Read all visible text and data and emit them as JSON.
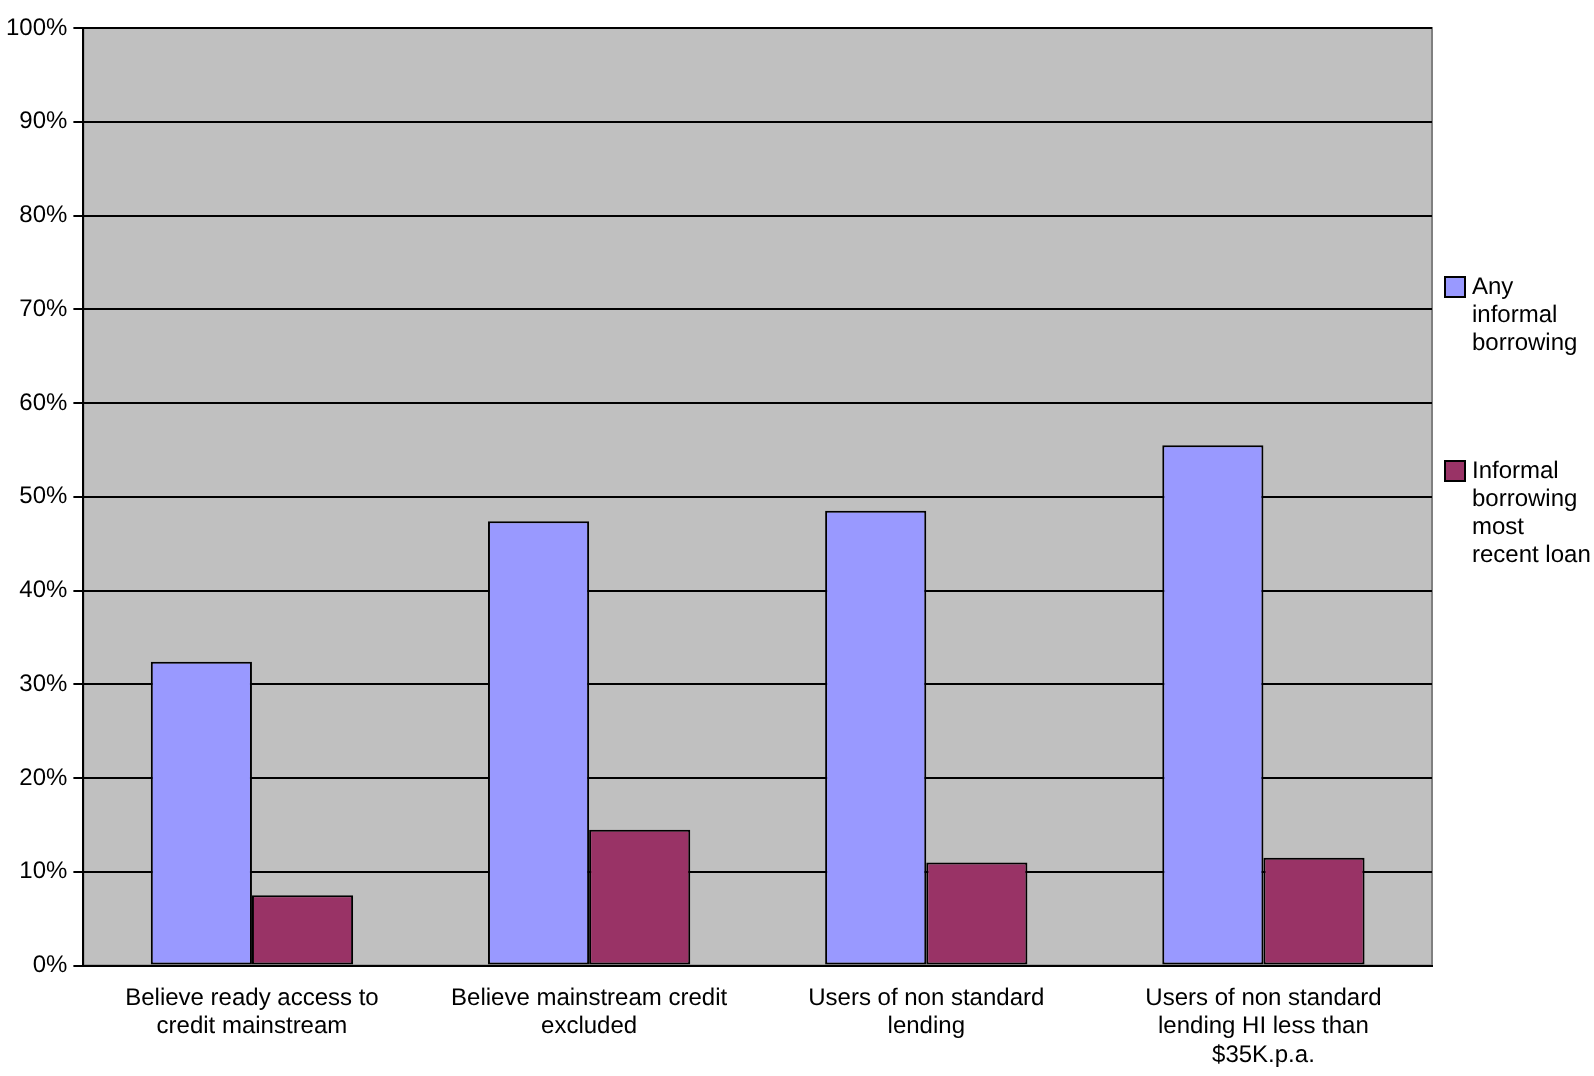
{
  "chart_data": {
    "type": "bar",
    "categories": [
      "Believe ready access to credit mainstream",
      "Believe mainstream credit excluded",
      "Users of non standard lending",
      "Users of non standard lending HI less than $35K.p.a."
    ],
    "series": [
      {
        "name": "Any informal borrowing",
        "color": "#9999ff",
        "values": [
          32.4,
          47.4,
          48.5,
          55.5
        ]
      },
      {
        "name": "Informal borrowing most recent loan",
        "color": "#993366",
        "values": [
          7.5,
          14.5,
          11.0,
          11.5
        ]
      }
    ],
    "ylim": [
      0,
      100
    ],
    "yticks": [
      {
        "value": 0,
        "label": "0%"
      },
      {
        "value": 10,
        "label": "10%"
      },
      {
        "value": 20,
        "label": "20%"
      },
      {
        "value": 30,
        "label": "30%"
      },
      {
        "value": 40,
        "label": "40%"
      },
      {
        "value": 50,
        "label": "50%"
      },
      {
        "value": 60,
        "label": "60%"
      },
      {
        "value": 70,
        "label": "70%"
      },
      {
        "value": 80,
        "label": "80%"
      },
      {
        "value": 90,
        "label": "90%"
      },
      {
        "value": 100,
        "label": "100%"
      }
    ],
    "grid": "y",
    "legend": "right"
  }
}
